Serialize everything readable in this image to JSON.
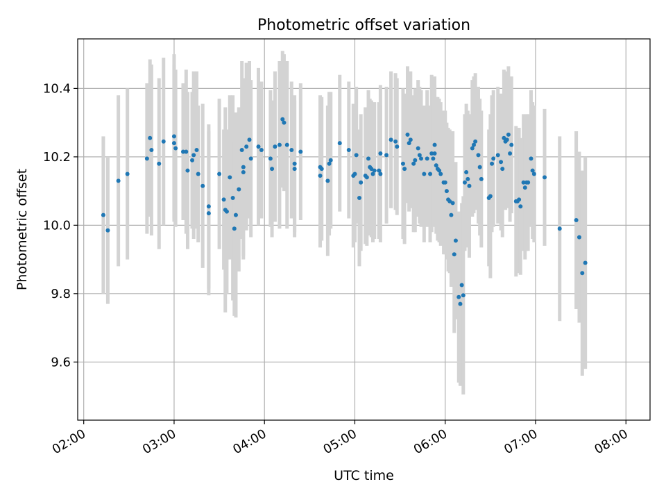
{
  "chart_data": {
    "type": "scatter",
    "title": "Photometric offset variation",
    "xlabel": "UTC time",
    "ylabel": "Photometric offset",
    "x_axis": "time",
    "xlim": [
      "01:56",
      "08:16"
    ],
    "ylim": [
      9.43,
      10.545
    ],
    "x_ticks": [
      "02:00",
      "03:00",
      "04:00",
      "05:00",
      "06:00",
      "07:00",
      "08:00"
    ],
    "y_ticks": [
      9.6,
      9.8,
      10.0,
      10.2,
      10.4
    ],
    "grid": true,
    "errorbar_color": "#d3d3d3",
    "marker_color": "#1f77b4",
    "series": [
      {
        "points": [
          [
            "02:13",
            10.03,
            0.23
          ],
          [
            "02:16",
            9.985,
            0.215
          ],
          [
            "02:23",
            10.13,
            0.25
          ],
          [
            "02:29",
            10.15,
            0.25
          ],
          [
            "02:42",
            10.195,
            0.22
          ],
          [
            "02:44",
            10.255,
            0.23
          ],
          [
            "02:45",
            10.22,
            0.25
          ],
          [
            "02:50",
            10.18,
            0.25
          ],
          [
            "02:53",
            10.245,
            0.245
          ],
          [
            "03:00",
            10.26,
            0.24
          ],
          [
            "03:00",
            10.24,
            0.23
          ],
          [
            "03:01",
            10.225,
            0.23
          ],
          [
            "03:06",
            10.215,
            0.2
          ],
          [
            "03:08",
            10.215,
            0.24
          ],
          [
            "03:09",
            10.16,
            0.23
          ],
          [
            "03:12",
            10.19,
            0.2
          ],
          [
            "03:13",
            10.205,
            0.245
          ],
          [
            "03:15",
            10.22,
            0.23
          ],
          [
            "03:16",
            10.15,
            0.2
          ],
          [
            "03:19",
            10.115,
            0.24
          ],
          [
            "03:23",
            10.055,
            0.24
          ],
          [
            "03:23",
            10.035,
            0.24
          ],
          [
            "03:30",
            10.15,
            0.22
          ],
          [
            "03:33",
            10.075,
            0.205
          ],
          [
            "03:34",
            10.045,
            0.3
          ],
          [
            "03:35",
            10.04,
            0.24
          ],
          [
            "03:37",
            10.14,
            0.24
          ],
          [
            "03:39",
            10.08,
            0.3
          ],
          [
            "03:40",
            9.99,
            0.255
          ],
          [
            "03:41",
            10.03,
            0.3
          ],
          [
            "03:43",
            10.105,
            0.24
          ],
          [
            "03:45",
            10.22,
            0.26
          ],
          [
            "03:46",
            10.17,
            0.26
          ],
          [
            "03:46",
            10.155,
            0.255
          ],
          [
            "03:48",
            10.23,
            0.245
          ],
          [
            "03:50",
            10.25,
            0.23
          ],
          [
            "03:51",
            10.195,
            0.23
          ],
          [
            "03:56",
            10.23,
            0.23
          ],
          [
            "03:58",
            10.22,
            0.2
          ],
          [
            "04:04",
            10.195,
            0.2
          ],
          [
            "04:05",
            10.165,
            0.2
          ],
          [
            "04:07",
            10.23,
            0.22
          ],
          [
            "04:10",
            10.235,
            0.245
          ],
          [
            "04:12",
            10.31,
            0.2
          ],
          [
            "04:13",
            10.3,
            0.2
          ],
          [
            "04:15",
            10.235,
            0.245
          ],
          [
            "04:18",
            10.22,
            0.2
          ],
          [
            "04:20",
            10.18,
            0.2
          ],
          [
            "04:20",
            10.165,
            0.2
          ],
          [
            "04:24",
            10.215,
            0.2
          ],
          [
            "04:37",
            10.17,
            0.21
          ],
          [
            "04:37",
            10.145,
            0.21
          ],
          [
            "04:38",
            10.165,
            0.21
          ],
          [
            "04:42",
            10.13,
            0.22
          ],
          [
            "04:43",
            10.18,
            0.21
          ],
          [
            "04:44",
            10.19,
            0.2
          ],
          [
            "04:50",
            10.24,
            0.2
          ],
          [
            "04:56",
            10.22,
            0.2
          ],
          [
            "04:59",
            10.145,
            0.21
          ],
          [
            "05:00",
            10.15,
            0.2
          ],
          [
            "05:01",
            10.205,
            0.2
          ],
          [
            "05:03",
            10.08,
            0.2
          ],
          [
            "05:04",
            10.125,
            0.2
          ],
          [
            "05:07",
            10.145,
            0.2
          ],
          [
            "05:08",
            10.14,
            0.2
          ],
          [
            "05:09",
            10.195,
            0.2
          ],
          [
            "05:10",
            10.17,
            0.2
          ],
          [
            "05:11",
            10.165,
            0.2
          ],
          [
            "05:12",
            10.15,
            0.2
          ],
          [
            "05:13",
            10.16,
            0.2
          ],
          [
            "05:16",
            10.16,
            0.2
          ],
          [
            "05:17",
            10.15,
            0.2
          ],
          [
            "05:17",
            10.21,
            0.2
          ],
          [
            "05:21",
            10.205,
            0.2
          ],
          [
            "05:24",
            10.25,
            0.2
          ],
          [
            "05:27",
            10.245,
            0.2
          ],
          [
            "05:28",
            10.23,
            0.2
          ],
          [
            "05:32",
            10.18,
            0.22
          ],
          [
            "05:33",
            10.165,
            0.22
          ],
          [
            "05:35",
            10.265,
            0.2
          ],
          [
            "05:36",
            10.24,
            0.2
          ],
          [
            "05:37",
            10.25,
            0.2
          ],
          [
            "05:39",
            10.18,
            0.2
          ],
          [
            "05:40",
            10.19,
            0.21
          ],
          [
            "05:42",
            10.225,
            0.2
          ],
          [
            "05:43",
            10.205,
            0.2
          ],
          [
            "05:44",
            10.195,
            0.2
          ],
          [
            "05:46",
            10.15,
            0.2
          ],
          [
            "05:48",
            10.195,
            0.2
          ],
          [
            "05:50",
            10.15,
            0.2
          ],
          [
            "05:51",
            10.21,
            0.23
          ],
          [
            "05:52",
            10.195,
            0.2
          ],
          [
            "05:53",
            10.21,
            0.2
          ],
          [
            "05:53",
            10.235,
            0.2
          ],
          [
            "05:54",
            10.175,
            0.2
          ],
          [
            "05:55",
            10.165,
            0.21
          ],
          [
            "05:56",
            10.16,
            0.21
          ],
          [
            "05:57",
            10.15,
            0.21
          ],
          [
            "05:59",
            10.125,
            0.21
          ],
          [
            "06:00",
            10.125,
            0.21
          ],
          [
            "06:01",
            10.1,
            0.2
          ],
          [
            "06:02",
            10.075,
            0.21
          ],
          [
            "06:03",
            10.07,
            0.21
          ],
          [
            "06:04",
            10.03,
            0.21
          ],
          [
            "06:05",
            10.065,
            0.21
          ],
          [
            "06:06",
            9.915,
            0.23
          ],
          [
            "06:07",
            9.955,
            0.23
          ],
          [
            "06:09",
            9.79,
            0.25
          ],
          [
            "06:10",
            9.77,
            0.24
          ],
          [
            "06:11",
            9.825,
            0.24
          ],
          [
            "06:12",
            9.795,
            0.29
          ],
          [
            "06:13",
            10.125,
            0.2
          ],
          [
            "06:14",
            10.155,
            0.2
          ],
          [
            "06:15",
            10.135,
            0.2
          ],
          [
            "06:16",
            10.115,
            0.21
          ],
          [
            "06:18",
            10.225,
            0.2
          ],
          [
            "06:19",
            10.235,
            0.2
          ],
          [
            "06:20",
            10.245,
            0.2
          ],
          [
            "06:22",
            10.205,
            0.2
          ],
          [
            "06:23",
            10.17,
            0.2
          ],
          [
            "06:24",
            10.135,
            0.2
          ],
          [
            "06:29",
            10.08,
            0.2
          ],
          [
            "06:30",
            10.085,
            0.24
          ],
          [
            "06:31",
            10.18,
            0.2
          ],
          [
            "06:32",
            10.195,
            0.2
          ],
          [
            "06:35",
            10.205,
            0.2
          ],
          [
            "06:37",
            10.185,
            0.2
          ],
          [
            "06:38",
            10.165,
            0.2
          ],
          [
            "06:39",
            10.255,
            0.2
          ],
          [
            "06:40",
            10.245,
            0.2
          ],
          [
            "06:41",
            10.25,
            0.2
          ],
          [
            "06:42",
            10.265,
            0.2
          ],
          [
            "06:43",
            10.21,
            0.2
          ],
          [
            "06:44",
            10.235,
            0.2
          ],
          [
            "06:47",
            10.07,
            0.22
          ],
          [
            "06:48",
            10.07,
            0.21
          ],
          [
            "06:49",
            10.075,
            0.21
          ],
          [
            "06:50",
            10.055,
            0.2
          ],
          [
            "06:52",
            10.125,
            0.2
          ],
          [
            "06:53",
            10.11,
            0.21
          ],
          [
            "06:54",
            10.125,
            0.2
          ],
          [
            "06:55",
            10.125,
            0.2
          ],
          [
            "06:57",
            10.195,
            0.2
          ],
          [
            "06:58",
            10.16,
            0.2
          ],
          [
            "06:59",
            10.15,
            0.2
          ],
          [
            "07:06",
            10.14,
            0.2
          ],
          [
            "07:16",
            9.99,
            0.27
          ],
          [
            "07:27",
            10.015,
            0.26
          ],
          [
            "07:29",
            9.965,
            0.25
          ],
          [
            "07:31",
            9.86,
            0.3
          ],
          [
            "07:33",
            9.89,
            0.31
          ]
        ]
      }
    ]
  }
}
